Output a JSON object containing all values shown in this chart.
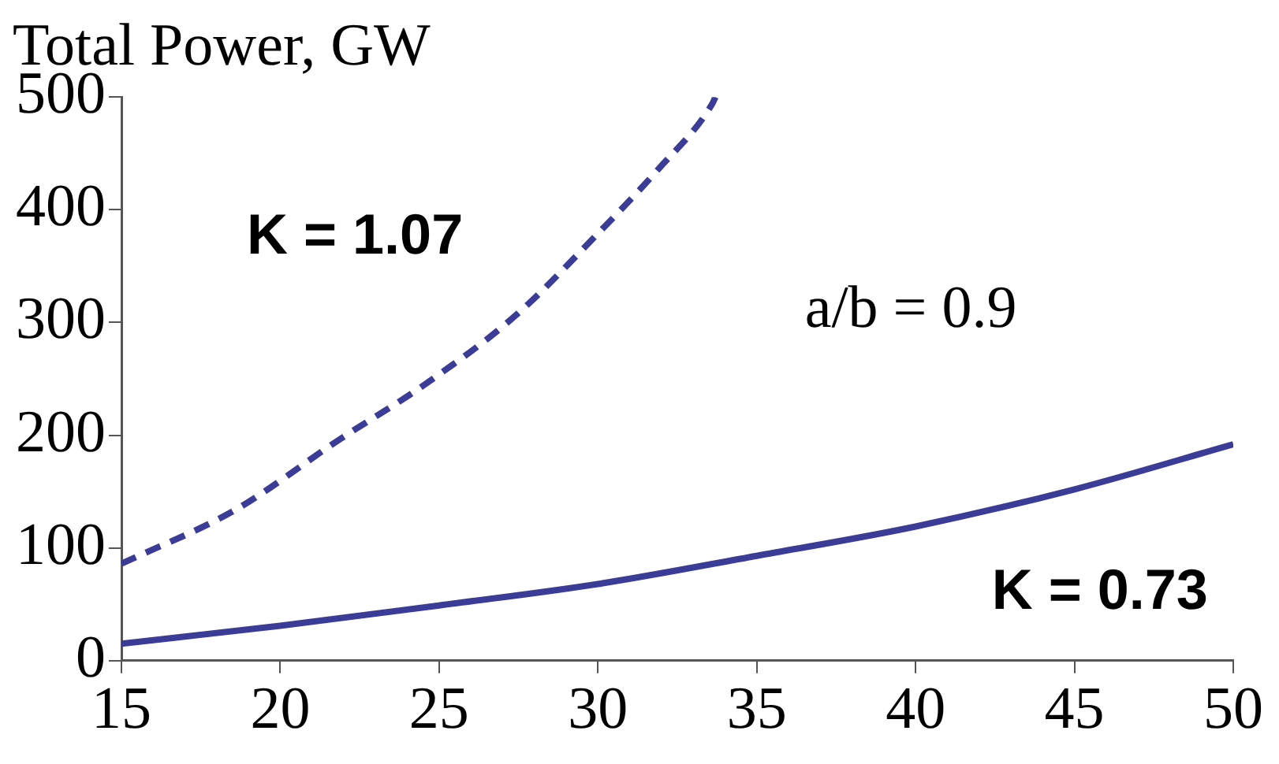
{
  "chart_data": {
    "type": "line",
    "title": "Total Power, GW",
    "series": [
      {
        "color": "#3b3b98",
        "line_style": "dashed",
        "x": [
          15,
          18.6,
          21.8,
          24.6,
          27.4,
          29.9,
          31.9,
          33.6,
          33.7
        ],
        "values": [
          86,
          134,
          195,
          246,
          306,
          376,
          436,
          494,
          500
        ]
      },
      {
        "color": "#3b3b98",
        "line_style": "solid",
        "x": [
          15,
          20,
          25,
          30,
          35,
          40,
          45,
          50
        ],
        "values": [
          15,
          31,
          49,
          68,
          93,
          119,
          152,
          192
        ]
      }
    ],
    "xlim": [
      15,
      50
    ],
    "xticks": [
      15,
      20,
      25,
      30,
      35,
      40,
      45,
      50
    ],
    "ylim": [
      0,
      500
    ],
    "yticks": [
      0,
      100,
      200,
      300,
      400,
      500
    ],
    "annotations": [
      "K = 1.07",
      "a/b = 0.9",
      "K = 0.73"
    ]
  }
}
